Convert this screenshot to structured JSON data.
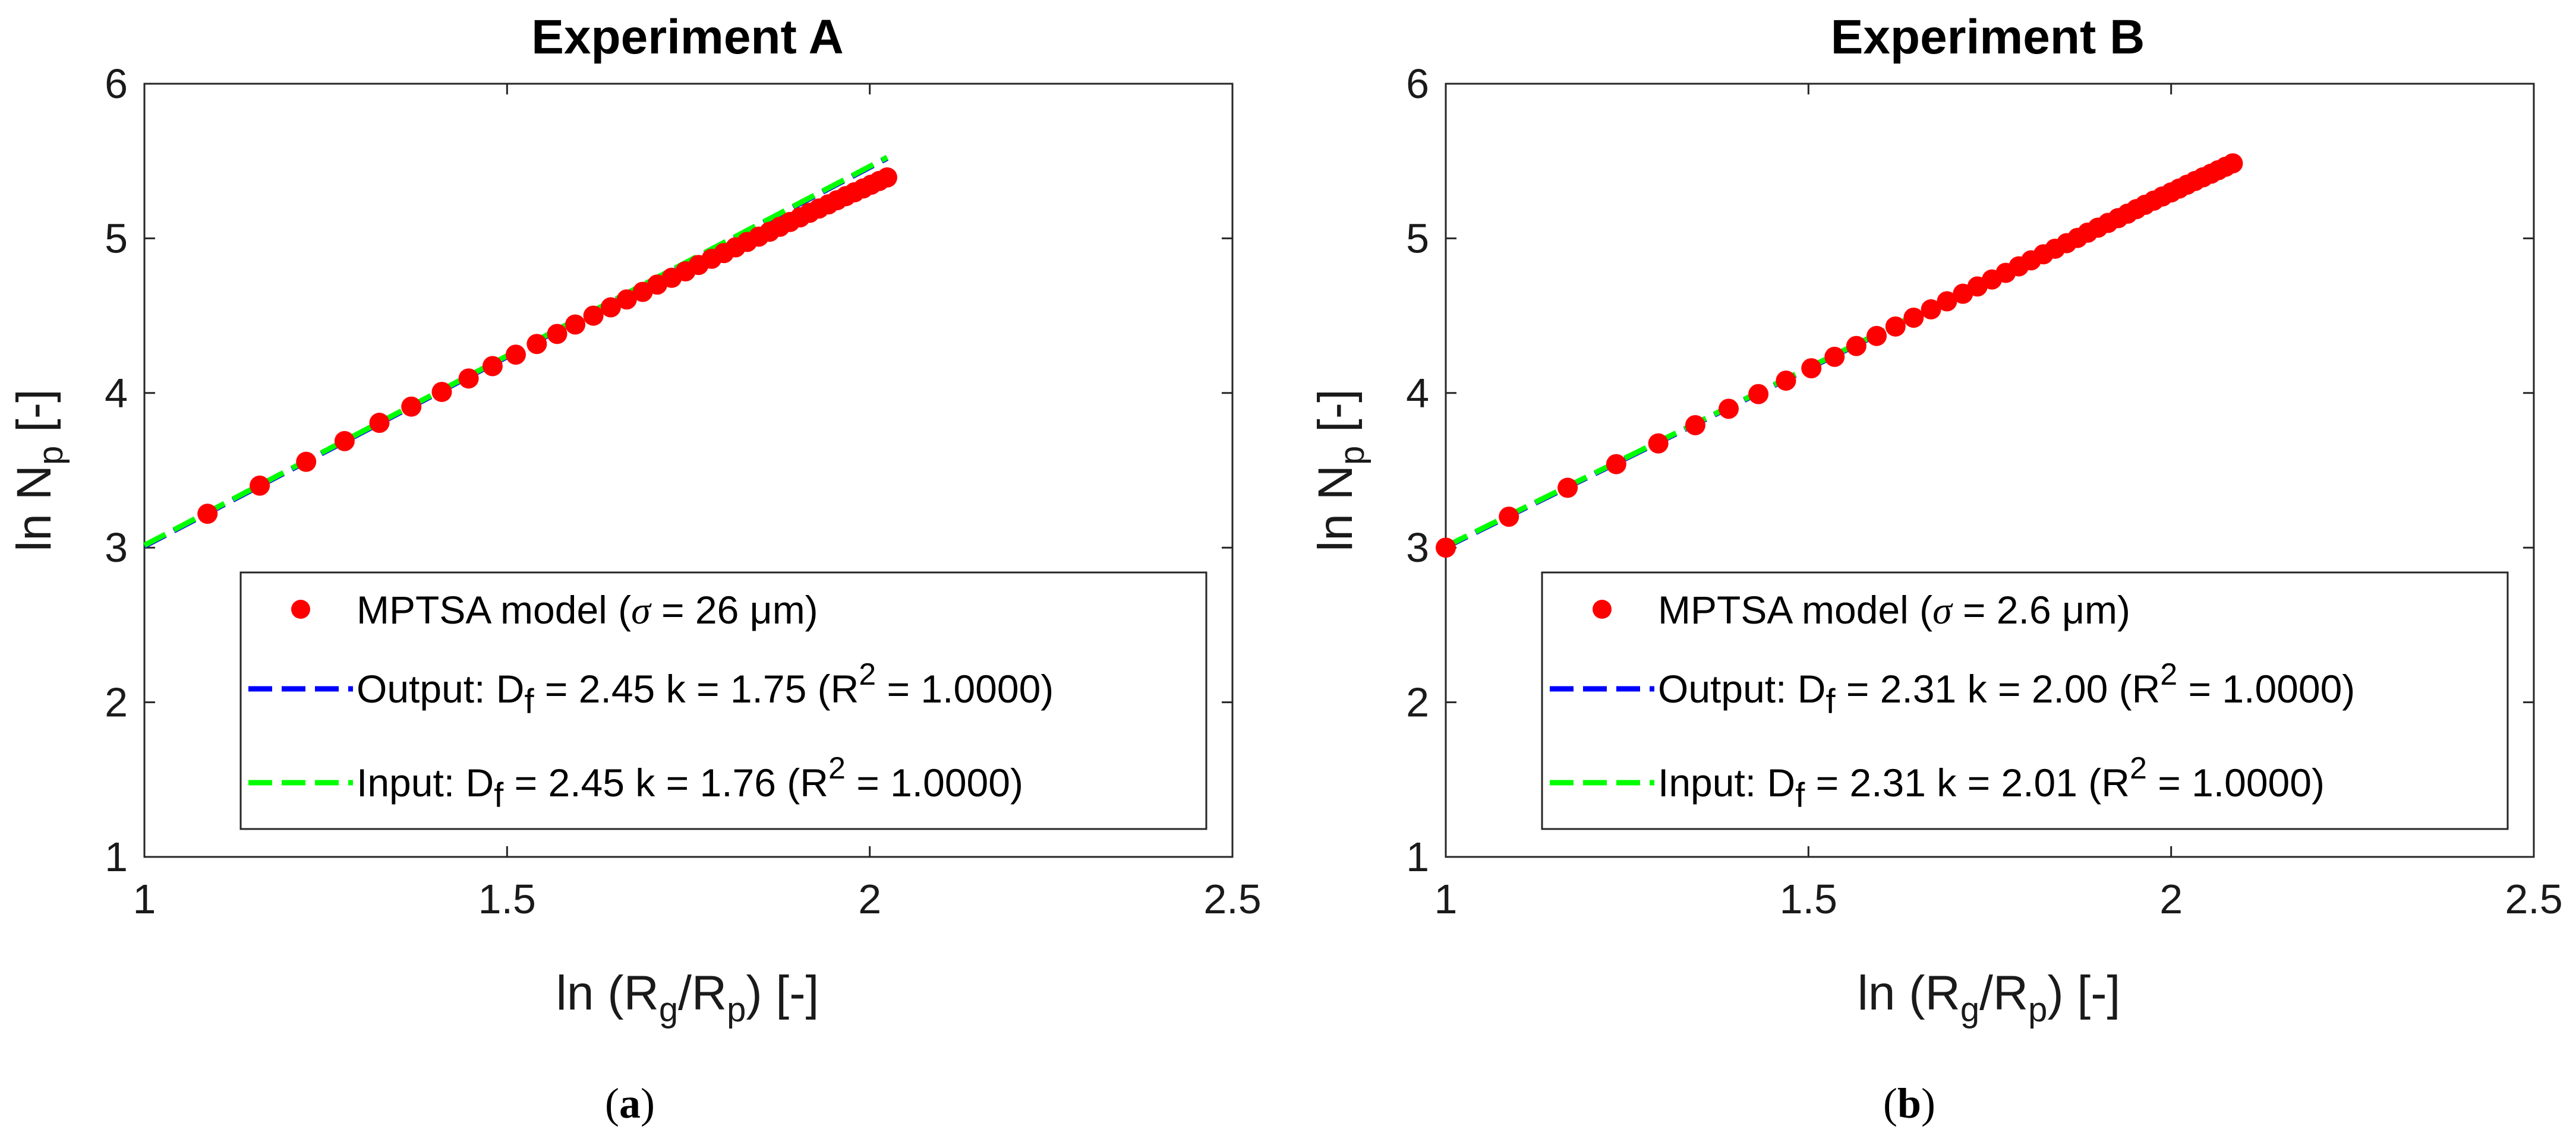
{
  "chart_data": [
    {
      "type": "scatter",
      "title": "Experiment A",
      "xlabel": "ln (Rg/Rp) [-]",
      "ylabel": "ln Np [-]",
      "xlim": [
        1,
        2.5
      ],
      "ylim": [
        1,
        6
      ],
      "xticks": [
        "1",
        "1.5",
        "2",
        "2.5"
      ],
      "yticks": [
        "1",
        "2",
        "3",
        "4",
        "5",
        "6"
      ],
      "caption": "a",
      "series": [
        {
          "name": "MPTSA model (σ = 26 μm)",
          "kind": "markers",
          "color": "#ff0000",
          "x": [
            1.087,
            1.159,
            1.223,
            1.276,
            1.324,
            1.368,
            1.41,
            1.447,
            1.48,
            1.512,
            1.541,
            1.569,
            1.594,
            1.619,
            1.643,
            1.665,
            1.687,
            1.707,
            1.727,
            1.746,
            1.764,
            1.782,
            1.799,
            1.815,
            1.831,
            1.847,
            1.862,
            1.876,
            1.89,
            1.904,
            1.917,
            1.93,
            1.943,
            1.955,
            1.967,
            1.979,
            1.991,
            2.002,
            2.013,
            2.024
          ],
          "y": [
            3.219,
            3.401,
            3.555,
            3.689,
            3.807,
            3.912,
            4.007,
            4.094,
            4.174,
            4.248,
            4.317,
            4.382,
            4.443,
            4.5,
            4.554,
            4.605,
            4.654,
            4.701,
            4.745,
            4.787,
            4.828,
            4.868,
            4.905,
            4.942,
            4.977,
            5.011,
            5.043,
            5.075,
            5.106,
            5.136,
            5.165,
            5.193,
            5.22,
            5.247,
            5.273,
            5.298,
            5.323,
            5.347,
            5.371,
            5.394
          ]
        },
        {
          "name": "Output: Df = 2.45 k = 1.75 (R2 = 1.0000)",
          "kind": "dashed-line",
          "color": "#0000ff",
          "Df": 2.45,
          "k": 1.75,
          "x": [
            1.0,
            2.024
          ]
        },
        {
          "name": "Input: Df = 2.45 k = 1.76 (R2 = 1.0000)",
          "kind": "dashed-line",
          "color": "#00ff00",
          "Df": 2.45,
          "k": 1.76,
          "x": [
            1.0,
            2.024
          ]
        }
      ],
      "legend": [
        {
          "label": "MPTSA model (",
          "sigma": "σ",
          "rest": " = 26 μm)"
        },
        {
          "pre": "Output: D",
          "sub": "f",
          "mid": " = 2.45 k = 1.75 (R",
          "sup": "2",
          "post": " = 1.0000)"
        },
        {
          "pre": "Input: D",
          "sub": "f",
          "mid": " = 2.45 k = 1.76 (R",
          "sup": "2",
          "post": " = 1.0000)"
        }
      ],
      "legend_position": "bottom-right"
    },
    {
      "type": "scatter",
      "title": "Experiment B",
      "xlabel": "ln (Rg/Rp) [-]",
      "ylabel": "ln Np [-]",
      "xlim": [
        1,
        2.5
      ],
      "ylim": [
        1,
        6
      ],
      "xticks": [
        "1",
        "1.5",
        "2",
        "2.5"
      ],
      "yticks": [
        "1",
        "2",
        "3",
        "4",
        "5",
        "6"
      ],
      "caption": "b",
      "series": [
        {
          "name": "MPTSA model (σ = 2.6 μm)",
          "kind": "markers",
          "color": "#ff0000",
          "x": [
            1.0,
            1.087,
            1.168,
            1.235,
            1.293,
            1.344,
            1.39,
            1.431,
            1.469,
            1.504,
            1.536,
            1.566,
            1.594,
            1.62,
            1.645,
            1.669,
            1.691,
            1.713,
            1.733,
            1.753,
            1.772,
            1.79,
            1.807,
            1.824,
            1.84,
            1.856,
            1.871,
            1.885,
            1.899,
            1.913,
            1.927,
            1.94,
            1.952,
            1.964,
            1.976,
            1.988,
            2.0,
            2.011,
            2.022,
            2.033,
            2.044,
            2.055,
            2.065,
            2.075,
            2.085
          ],
          "y": [
            3.0,
            3.2,
            3.387,
            3.54,
            3.674,
            3.792,
            3.898,
            3.993,
            4.08,
            4.16,
            4.234,
            4.304,
            4.369,
            4.43,
            4.487,
            4.541,
            4.593,
            4.642,
            4.689,
            4.734,
            4.777,
            4.819,
            4.858,
            4.897,
            4.933,
            4.969,
            5.003,
            5.037,
            5.069,
            5.1,
            5.131,
            5.16,
            5.189,
            5.217,
            5.244,
            5.271,
            5.297,
            5.322,
            5.347,
            5.371,
            5.395,
            5.418,
            5.441,
            5.463,
            5.485
          ]
        },
        {
          "name": "Output: Df = 2.31 k = 2.00 (R2 = 1.0000)",
          "kind": "dashed-line",
          "color": "#0000ff",
          "Df": 2.31,
          "k": 2.0,
          "x": [
            1.0,
            2.085
          ]
        },
        {
          "name": "Input: Df = 2.31 k = 2.01 (R2 = 1.0000)",
          "kind": "dashed-line",
          "color": "#00ff00",
          "Df": 2.31,
          "k": 2.01,
          "x": [
            1.0,
            2.085
          ]
        }
      ],
      "legend": [
        {
          "label": "MPTSA model (",
          "sigma": "σ",
          "rest": " = 2.6 μm)"
        },
        {
          "pre": "Output: D",
          "sub": "f",
          "mid": " = 2.31 k = 2.00 (R",
          "sup": "2",
          "post": " = 1.0000)"
        },
        {
          "pre": "Input: D",
          "sub": "f",
          "mid": " = 2.31 k = 2.01 (R",
          "sup": "2",
          "post": " = 1.0000)"
        }
      ],
      "legend_position": "bottom-right"
    }
  ],
  "labels": {
    "xlabel": {
      "pre": "ln (R",
      "s1": "g",
      "mid": "/R",
      "s2": "p",
      "post": ") [-]"
    },
    "ylabel": {
      "pre": "ln N",
      "s1": "p",
      "post": " [-]"
    },
    "paren_open": "(",
    "paren_close": ")"
  }
}
